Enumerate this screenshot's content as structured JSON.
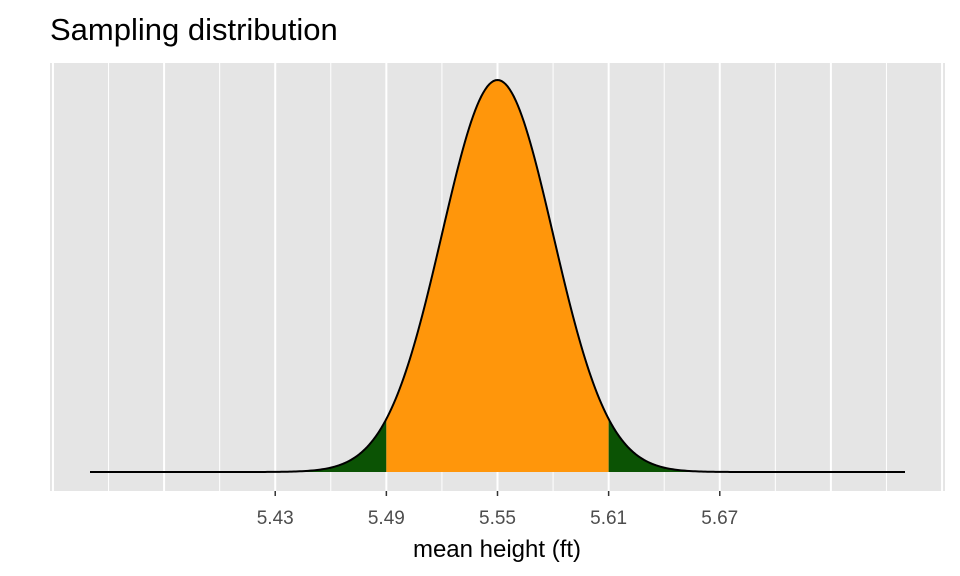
{
  "chart_data": {
    "type": "area",
    "title": "Sampling distribution",
    "xlabel": "mean height (ft)",
    "ylabel": "",
    "xlim": [
      5.33,
      5.77
    ],
    "mean": 5.55,
    "sd": 0.03,
    "x_range": [
      5.43,
      5.67
    ],
    "x_ticks": [
      "5.43",
      "5.49",
      "5.55",
      "5.61",
      "5.67"
    ],
    "grid": true,
    "legend": "none",
    "regions": [
      {
        "from": 5.33,
        "to": 5.43,
        "color": "#000080"
      },
      {
        "from": 5.43,
        "to": 5.49,
        "color": "#0b5304"
      },
      {
        "from": 5.49,
        "to": 5.61,
        "color": "#ff960b"
      },
      {
        "from": 5.61,
        "to": 5.67,
        "color": "#0b5304"
      },
      {
        "from": 5.67,
        "to": 5.77,
        "color": "#000080"
      }
    ],
    "colors": {
      "panel_background": "#e5e5e5",
      "grid": "#ffffff",
      "curve": "#000000"
    }
  }
}
